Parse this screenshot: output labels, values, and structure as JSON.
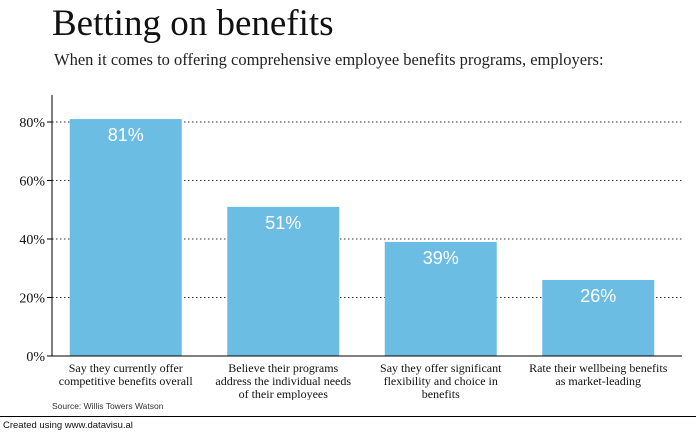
{
  "chart_data": {
    "type": "bar",
    "title": "Betting on benefits",
    "subtitle": "When it comes to offering comprehensive employee benefits programs, employers:",
    "categories": [
      [
        "Say they currently offer",
        "competitive benefits overall"
      ],
      [
        "Believe their programs",
        "address the individual needs",
        "of their employees"
      ],
      [
        "Say they offer significant",
        "flexibility and choice in",
        "benefits"
      ],
      [
        "Rate their wellbeing benefits",
        "as market-leading"
      ]
    ],
    "values": [
      81,
      51,
      39,
      26
    ],
    "data_labels": [
      "81%",
      "51%",
      "39%",
      "26%"
    ],
    "ylim": [
      0,
      90
    ],
    "yticks": [
      0,
      20,
      40,
      60,
      80
    ],
    "ytick_labels": [
      "0%",
      "20%",
      "40%",
      "60%",
      "80%"
    ],
    "grid": "horizontal dotted",
    "bar_color": "#6cbde4",
    "label_color": "#ffffff"
  },
  "source": "Source: Willis Towers Watson",
  "footer": "Created using www.datavisu.al"
}
